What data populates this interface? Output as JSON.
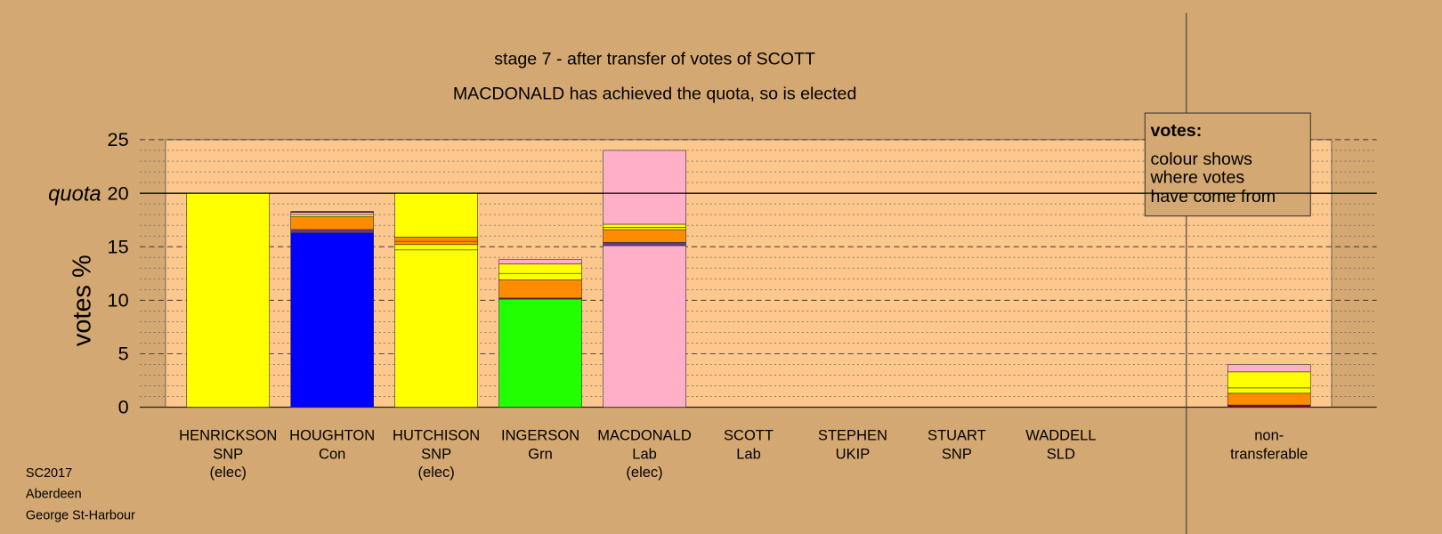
{
  "chart_data": {
    "type": "stacked-bar",
    "title": "stage 7 - after transfer of votes of SCOTT",
    "subtitle": "MACDONALD has achieved the quota, so is elected",
    "ylabel": "votes %",
    "quota": {
      "value": 20,
      "label": "quota"
    },
    "ylim": [
      0,
      25
    ],
    "yticks": [
      0,
      5,
      10,
      15,
      20,
      25
    ],
    "grid": true,
    "categories": [
      [
        "HENRICKSON",
        "SNP",
        "(elec)"
      ],
      [
        "HOUGHTON",
        "Con"
      ],
      [
        "HUTCHISON",
        "SNP",
        "(elec)"
      ],
      [
        "INGERSON",
        "Grn"
      ],
      [
        "MACDONALD",
        "Lab",
        "(elec)"
      ],
      [
        "SCOTT",
        "Lab"
      ],
      [
        "STEPHEN",
        "UKIP"
      ],
      [
        "STUART",
        "SNP"
      ],
      [
        "WADDELL",
        "SLD"
      ],
      [
        "non-",
        "transferable"
      ]
    ],
    "stacks": [
      [
        {
          "color": "#ffff00",
          "value": 20
        }
      ],
      [
        {
          "color": "#0000ff",
          "value": 16.3
        },
        {
          "color": "#7030a0",
          "value": 0.3
        },
        {
          "color": "#ff8c00",
          "value": 1.2
        },
        {
          "color": "#ffff00",
          "value": 0.2
        },
        {
          "color": "#ffb0c8",
          "value": 0.2
        },
        {
          "color": "#800040",
          "value": 0.1
        }
      ],
      [
        {
          "color": "#ffff00",
          "value": 14.7
        },
        {
          "color": "#ffff00",
          "value": 0.5
        },
        {
          "color": "#ff8c00",
          "value": 0.3
        },
        {
          "color": "#ff8c00",
          "value": 0.4
        },
        {
          "color": "#ffff00",
          "value": 4.1
        }
      ],
      [
        {
          "color": "#22ff00",
          "value": 10.1
        },
        {
          "color": "#800040",
          "value": 0.1
        },
        {
          "color": "#ff8c00",
          "value": 1.7
        },
        {
          "color": "#ffff00",
          "value": 0.6
        },
        {
          "color": "#ffff00",
          "value": 0.9
        },
        {
          "color": "#ffb0c8",
          "value": 0.4
        }
      ],
      [
        {
          "color": "#ffb0c8",
          "value": 15.1
        },
        {
          "color": "#7030a0",
          "value": 0.3
        },
        {
          "color": "#ff8c00",
          "value": 1.2
        },
        {
          "color": "#ffff00",
          "value": 0.2
        },
        {
          "color": "#ffff00",
          "value": 0.3
        },
        {
          "color": "#ffb0c8",
          "value": 6.9
        }
      ],
      [],
      [],
      [],
      [],
      [
        {
          "color": "#800040",
          "value": 0.2
        },
        {
          "color": "#ff8c00",
          "value": 1.1
        },
        {
          "color": "#ffff00",
          "value": 0.5
        },
        {
          "color": "#ffff00",
          "value": 1.5
        },
        {
          "color": "#ffb0c8",
          "value": 0.7
        }
      ]
    ],
    "legend": {
      "title": "votes:",
      "lines": [
        "colour shows",
        "where votes",
        "have come from"
      ]
    },
    "footer": [
      "SC2017",
      "Aberdeen",
      "George St-Harbour"
    ]
  }
}
